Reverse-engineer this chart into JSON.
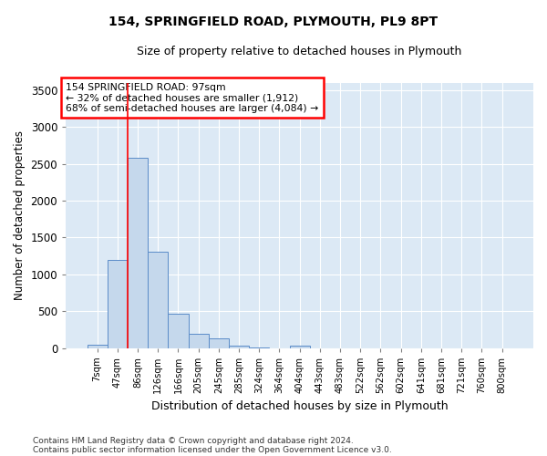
{
  "title1": "154, SPRINGFIELD ROAD, PLYMOUTH, PL9 8PT",
  "title2": "Size of property relative to detached houses in Plymouth",
  "xlabel": "Distribution of detached houses by size in Plymouth",
  "ylabel": "Number of detached properties",
  "bin_labels": [
    "7sqm",
    "47sqm",
    "86sqm",
    "126sqm",
    "166sqm",
    "205sqm",
    "245sqm",
    "285sqm",
    "324sqm",
    "364sqm",
    "404sqm",
    "443sqm",
    "483sqm",
    "522sqm",
    "562sqm",
    "602sqm",
    "641sqm",
    "681sqm",
    "721sqm",
    "760sqm",
    "800sqm"
  ],
  "bar_heights": [
    50,
    1200,
    2580,
    1310,
    470,
    190,
    130,
    30,
    15,
    0,
    30,
    0,
    0,
    0,
    0,
    0,
    0,
    0,
    0,
    0,
    0
  ],
  "bar_color": "#c5d8ec",
  "bar_edge_color": "#5b8cc8",
  "plot_bg_color": "#dce9f5",
  "ylim": [
    0,
    3600
  ],
  "yticks": [
    0,
    500,
    1000,
    1500,
    2000,
    2500,
    3000,
    3500
  ],
  "annotation_line1": "154 SPRINGFIELD ROAD: 97sqm",
  "annotation_line2": "← 32% of detached houses are smaller (1,912)",
  "annotation_line3": "68% of semi-detached houses are larger (4,084) →",
  "red_line_bin_index": 2,
  "footer1": "Contains HM Land Registry data © Crown copyright and database right 2024.",
  "footer2": "Contains public sector information licensed under the Open Government Licence v3.0."
}
